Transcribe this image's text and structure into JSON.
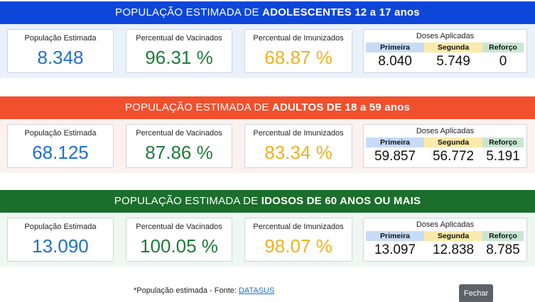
{
  "sections": [
    {
      "header_prefix": "POPULAÇÃO ESTIMADA DE ",
      "header_bold": "ADOLESCENTES 12 a 17 anos",
      "header_color": "#0d47d9",
      "body_color": "#e9f2fb",
      "pop_label": "População Estimada",
      "pop_value": "8.348",
      "vac_label": "Percentual de Vacinados",
      "vac_value": "96.31 %",
      "imu_label": "Percentual de Imunizados",
      "imu_value": "68.87 %",
      "doses_title": "Doses Aplicadas",
      "doses_headers": [
        "Primeira",
        "Segunda",
        "Reforço"
      ],
      "doses_values": [
        "8.040",
        "5.749",
        "0"
      ]
    },
    {
      "header_prefix": "POPULAÇÃO ESTIMADA DE ",
      "header_bold": "ADULTOS DE 18 a 59 anos",
      "header_color": "#f2502d",
      "body_color": "#fbf2ef",
      "pop_label": "População Estimada",
      "pop_value": "68.125",
      "vac_label": "Percentual de Vacinados",
      "vac_value": "87.86 %",
      "imu_label": "Percentual de Imunizados",
      "imu_value": "83.34 %",
      "doses_title": "Doses Aplicadas",
      "doses_headers": [
        "Primeira",
        "Segunda",
        "Reforço"
      ],
      "doses_values": [
        "59.857",
        "56.772",
        "5.191"
      ]
    },
    {
      "header_prefix": "POPULAÇÃO ESTIMADA DE ",
      "header_bold": "IDOSOS DE 60 ANOS OU MAIS",
      "header_color": "#1b6e2c",
      "body_color": "#eef7f0",
      "pop_label": "População Estimada",
      "pop_value": "13.090",
      "vac_label": "Percentual de Vacinados",
      "vac_value": "100.05 %",
      "imu_label": "Percentual de Imunizados",
      "imu_value": "98.07 %",
      "doses_title": "Doses Aplicadas",
      "doses_headers": [
        "Primeira",
        "Segunda",
        "Reforço"
      ],
      "doses_values": [
        "13.097",
        "12.838",
        "8.785"
      ]
    }
  ],
  "footer": {
    "note": "*População estimada - Fonte: ",
    "link": "DATASUS",
    "close_label": "Fechar"
  }
}
